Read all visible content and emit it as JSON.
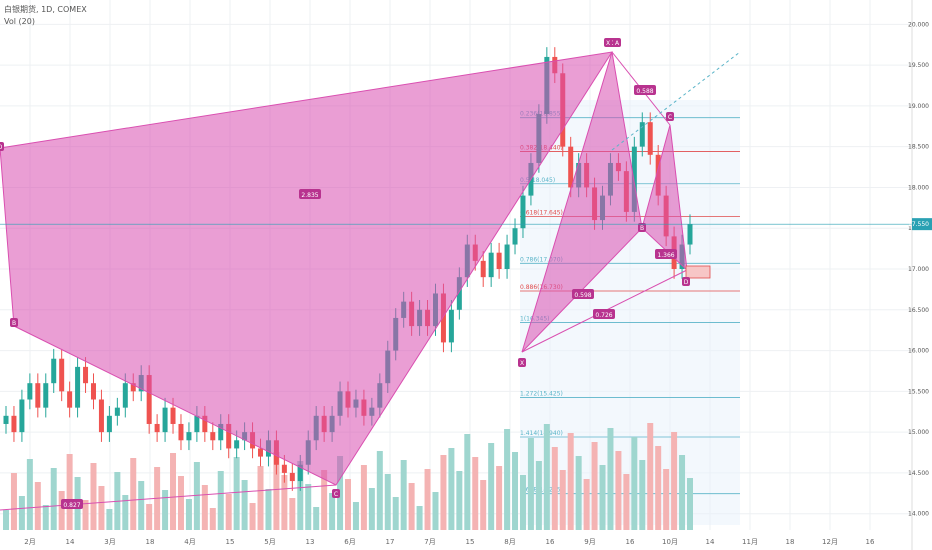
{
  "header": {
    "symbol": "白银期货, 1D, COMEX",
    "volume_label": "Vol (20)"
  },
  "price_tag": "17.550",
  "chart_data": {
    "type": "candlestick",
    "title": "白银期货, 1D, COMEX",
    "ylim": [
      13.8,
      20.2
    ],
    "y_ticks": [
      "20.000",
      "19.500",
      "19.000",
      "18.500",
      "18.000",
      "17.500",
      "17.000",
      "16.500",
      "16.000",
      "15.500",
      "15.000",
      "14.500",
      "14.000"
    ],
    "x_ticks": [
      "2月",
      "14",
      "3月",
      "18",
      "4月",
      "15",
      "5月",
      "13",
      "6月",
      "17",
      "7月",
      "15",
      "8月",
      "16",
      "9月",
      "16",
      "10月",
      "14",
      "11月",
      "18",
      "12月",
      "16"
    ],
    "pattern_labels": [
      "D",
      "X",
      "B",
      "C",
      "A",
      "D",
      "C",
      "B",
      "D",
      "X"
    ],
    "ratios": [
      "2.835",
      "0.827",
      "0.588",
      "0.598",
      "1.366",
      "0.726"
    ],
    "fib_levels": [
      {
        "label": "0.236(18.855)",
        "color": "#5ab4c8"
      },
      {
        "label": "0.382(18.440)",
        "color": "#e04b4b"
      },
      {
        "label": "0.5(18.045)",
        "color": "#5ab4c8"
      },
      {
        "label": "0.618(17.645)",
        "color": "#e04b4b"
      },
      {
        "label": "0.786(17.070)",
        "color": "#5ab4c8"
      },
      {
        "label": "0.886(16.730)",
        "color": "#e04b4b"
      },
      {
        "label": "1(16.345)",
        "color": "#5ab4c8"
      },
      {
        "label": "1.272(15.425)",
        "color": "#5ab4c8"
      },
      {
        "label": "1.414(14.940)",
        "color": "#5ab4c8"
      },
      {
        "label": "1.618(14.245)",
        "color": "#5ab4c8"
      }
    ],
    "close_series": [
      15.2,
      15.0,
      15.4,
      15.6,
      15.3,
      15.6,
      15.9,
      15.5,
      15.3,
      15.8,
      15.6,
      15.4,
      15.0,
      15.2,
      15.3,
      15.6,
      15.5,
      15.7,
      15.1,
      15.0,
      15.3,
      15.1,
      14.9,
      15.0,
      15.2,
      15.0,
      14.9,
      15.1,
      14.8,
      14.9,
      15.0,
      14.8,
      14.7,
      14.9,
      14.6,
      14.5,
      14.4,
      14.6,
      14.9,
      15.2,
      15.0,
      15.2,
      15.5,
      15.3,
      15.4,
      15.2,
      15.3,
      15.6,
      16.0,
      16.4,
      16.6,
      16.3,
      16.5,
      16.3,
      16.7,
      16.1,
      16.5,
      16.9,
      17.3,
      17.1,
      16.9,
      17.2,
      17.0,
      17.3,
      17.5,
      17.9,
      18.3,
      18.9,
      19.6,
      19.4,
      18.5,
      18.0,
      18.3,
      18.0,
      17.6,
      17.9,
      18.3,
      18.2,
      17.7,
      18.5,
      18.8,
      18.4,
      17.9,
      17.4,
      17.0,
      17.3,
      17.55
    ]
  }
}
